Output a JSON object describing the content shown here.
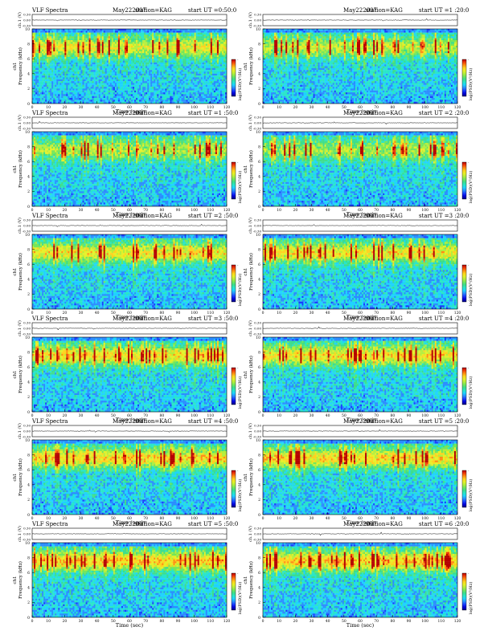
{
  "colorbar_label": "log(PSD)(V²/Hz)",
  "colorbar_top_tick": "-",
  "colorbar_bottom_tick": "-",
  "colors": {
    "ramp": [
      "#00007f",
      "#0000d8",
      "#1a3dff",
      "#2a8cff",
      "#1fd2ff",
      "#28e6c8",
      "#3cdd8c",
      "#73e65a",
      "#b4ee3c",
      "#e6f028",
      "#ffd21e",
      "#ff8c14",
      "#f03c0a",
      "#b40000"
    ]
  },
  "panels": [
    {
      "header": {
        "title": "VLF Spectra",
        "date": "May222007",
        "station": "station=KAG",
        "start": "start  UT =0:50:0"
      },
      "level": 0.55
    },
    {
      "header": {
        "title": "",
        "date": "May222007",
        "station": "station=KAG",
        "start": "start  UT =1 :20:0"
      },
      "level": 0.45
    },
    {
      "header": {
        "title": "VLF Spectra",
        "date": "May222007",
        "station": "station=KAG",
        "start": "start  UT =1 :50:0"
      },
      "level": 0.42
    },
    {
      "header": {
        "title": "",
        "date": "May222007",
        "station": "station=KAG",
        "start": "start  UT =2 :20:0"
      },
      "level": 0.4
    },
    {
      "header": {
        "title": "VLF Spectra",
        "date": "May222007",
        "station": "station=KAG",
        "start": "start  UT =2 :50:0"
      },
      "level": 0.6
    },
    {
      "header": {
        "title": "",
        "date": "May222007",
        "station": "station=KAG",
        "start": "start  UT =3 :20:0"
      },
      "level": 0.6
    },
    {
      "header": {
        "title": "VLF Spectra",
        "date": "May222007",
        "station": "station=KAG",
        "start": "start  UT =3 :50:0"
      },
      "level": 0.62
    },
    {
      "header": {
        "title": "",
        "date": "May222007",
        "station": "station=KAG",
        "start": "start  UT =4 :20:0"
      },
      "level": 0.62
    },
    {
      "header": {
        "title": "VLF Spectra",
        "date": "May222007",
        "station": "station=KAG",
        "start": "start  UT =4 :50:0"
      },
      "level": 0.66
    },
    {
      "header": {
        "title": "",
        "date": "May222007",
        "station": "station=KAG",
        "start": "start  UT =5 :20:0"
      },
      "level": 0.66
    },
    {
      "header": {
        "title": "VLF Spectra",
        "date": "May222007",
        "station": "station=KAG",
        "start": "start  UT =5 :50:0"
      },
      "level": 0.7
    },
    {
      "header": {
        "title": "",
        "date": "May222007",
        "station": "station=KAG",
        "start": "start  UT =6 :20:0"
      },
      "level": 0.7
    }
  ],
  "chart_data": {
    "type": "heatmap",
    "xlabel": "Time (sec)",
    "ylabel_spec": "Frequency (kHz)",
    "ylabel_spec_left": "ch1",
    "ylabel_ts": "ch.1 (V)",
    "xlim": [
      0,
      120
    ],
    "ylim": [
      0,
      10
    ],
    "ts_ylim": [
      -0.3,
      0.3
    ],
    "x_ticks": [
      "0",
      "10",
      "20",
      "30",
      "40",
      "50",
      "60",
      "70",
      "80",
      "90",
      "100",
      "110",
      "120"
    ],
    "y_ticks": [
      "0",
      "2",
      "4",
      "6",
      "8",
      "10"
    ],
    "ts_ticks": [
      "0.30",
      "0.00",
      "-0.30"
    ]
  }
}
